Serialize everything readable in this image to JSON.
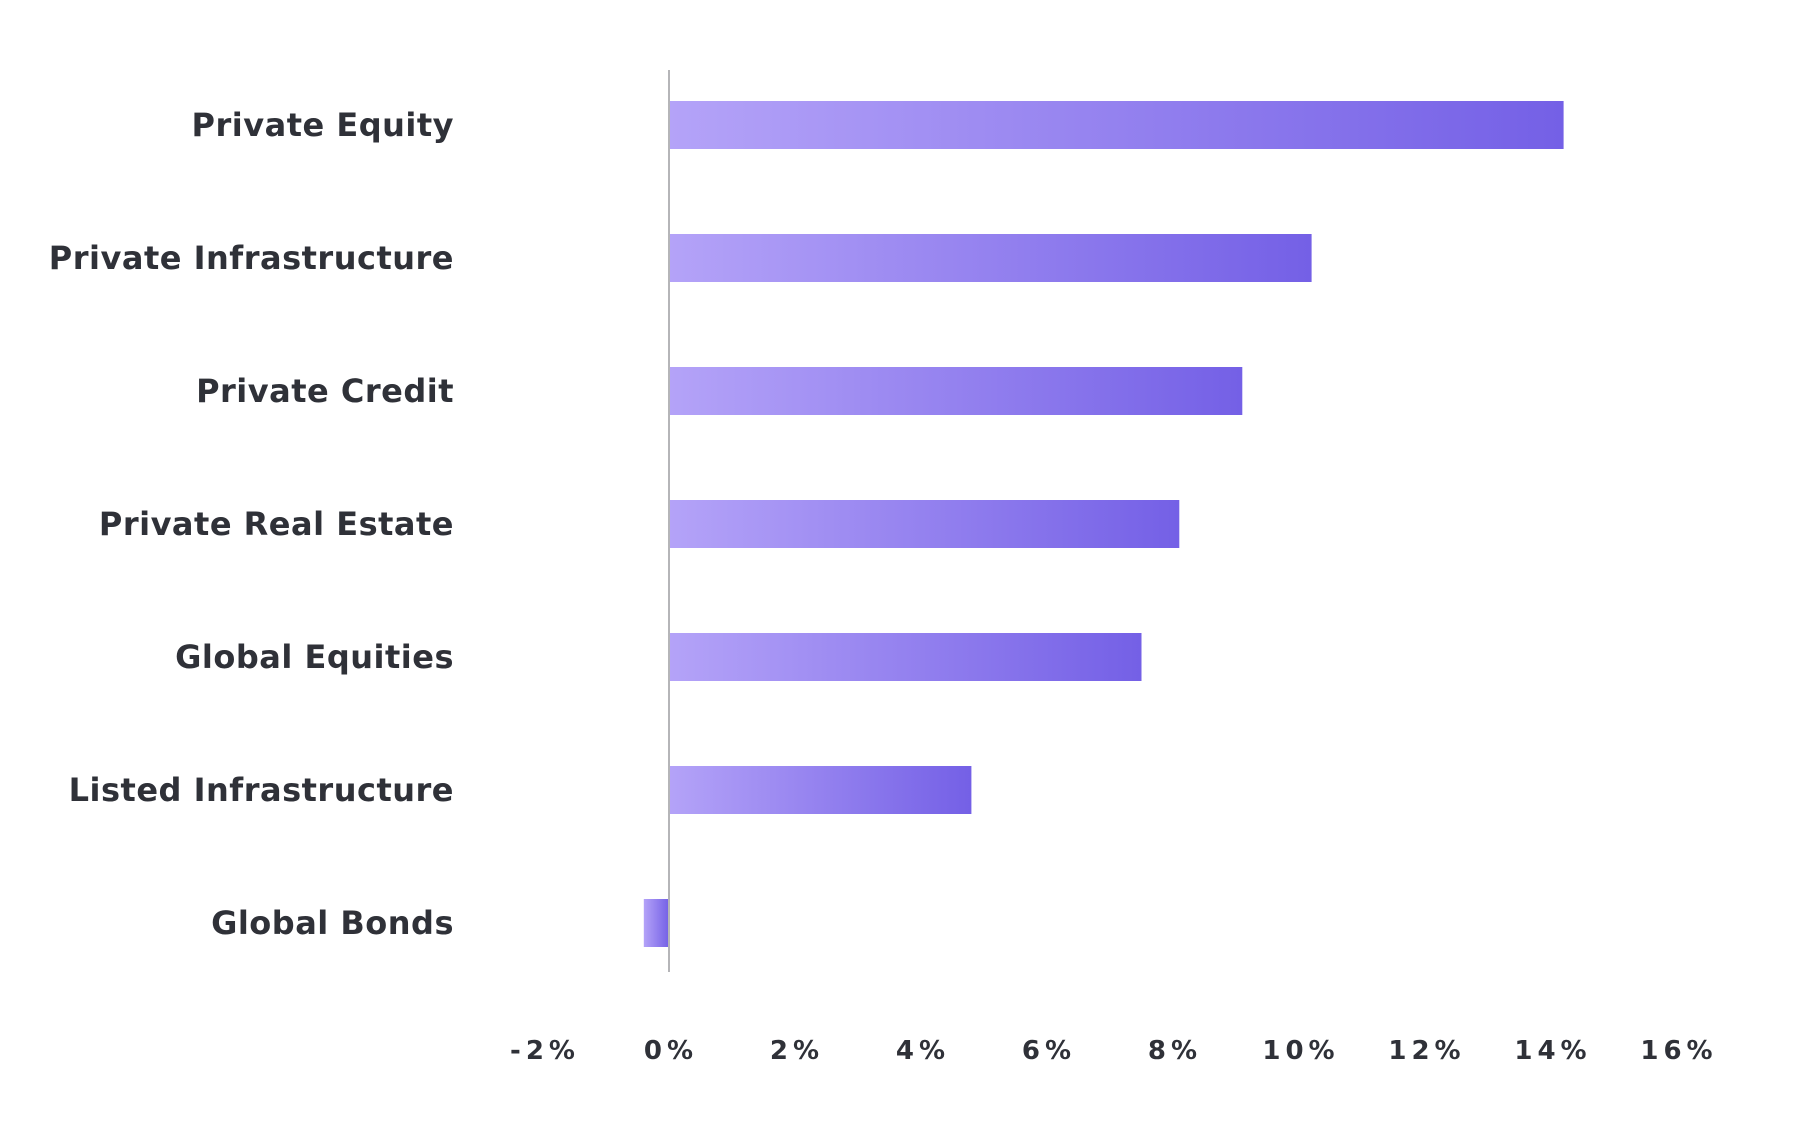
{
  "chart_data": {
    "type": "bar",
    "orientation": "horizontal",
    "categories": [
      "Private Equity",
      "Private Infrastructure",
      "Private Credit",
      "Private Real Estate",
      "Global Equities",
      "Listed Infrastructure",
      "Global Bonds"
    ],
    "values": [
      14.2,
      10.2,
      9.1,
      8.1,
      7.5,
      4.8,
      -0.4
    ],
    "value_unit": "%",
    "xlim": [
      -2,
      16
    ],
    "xticks": [
      -2,
      0,
      2,
      4,
      6,
      8,
      10,
      12,
      14,
      16
    ],
    "xtick_labels": [
      "-2%",
      "0%",
      "2%",
      "4%",
      "6%",
      "8%",
      "10%",
      "12%",
      "14%",
      "16%"
    ],
    "title": "",
    "xlabel": "",
    "ylabel": "",
    "grid": false,
    "legend": "none",
    "colors": {
      "bar_gradient_start": "#b4a3f8",
      "bar_gradient_end": "#7460e6",
      "text": "#2f3138",
      "zero_axis": "#b5b5b8"
    }
  }
}
